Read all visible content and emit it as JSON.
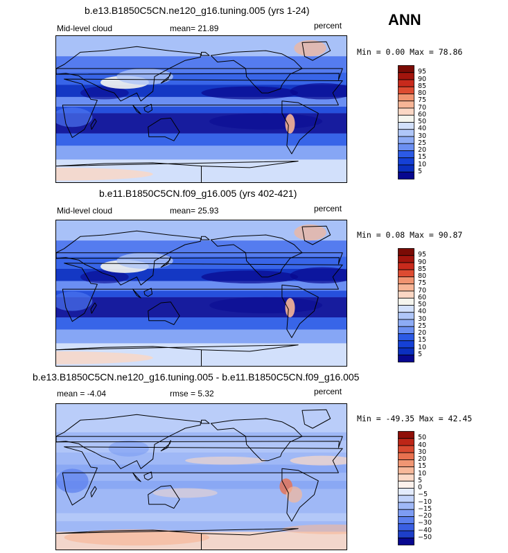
{
  "season": "ANN",
  "palettes": {
    "abs": [
      "#08088f",
      "#0b2fbf",
      "#1540d6",
      "#2c5ae5",
      "#4b73ee",
      "#6b8ff2",
      "#8dabf5",
      "#afc6f8",
      "#d2e0fb",
      "#f5f5ee",
      "#fbd7c4",
      "#f7b596",
      "#f09370",
      "#e8704e",
      "#dd4b31",
      "#c82a1c",
      "#a3150d",
      "#7a0b05"
    ],
    "diff": [
      "#08088f",
      "#1d3fc9",
      "#3a5fe3",
      "#5b7fee",
      "#7d9cf3",
      "#9fb8f6",
      "#c1d2fa",
      "#e3ebfd",
      "#fdf1ec",
      "#fbd9c7",
      "#f7b89a",
      "#f09673",
      "#e8714f",
      "#d94a30",
      "#bd2617",
      "#8f0f08"
    ]
  },
  "panels": [
    {
      "title": "b.e13.B1850C5CN.ne120_g16.tuning.005 (yrs 1-24)",
      "left_label": "Mid-level cloud",
      "mid_label": "mean=   21.89",
      "units": "percent",
      "minmax": "Min =    0.00 Max =   78.86",
      "colorbar": {
        "palette": "abs",
        "labels": [
          "95",
          "90",
          "85",
          "80",
          "75",
          "70",
          "60",
          "50",
          "40",
          "30",
          "25",
          "20",
          "15",
          "10",
          "5"
        ]
      }
    },
    {
      "title": "b.e11.B1850C5CN.f09_g16.005 (yrs 402-421)",
      "left_label": "Mid-level cloud",
      "mid_label": "mean=   25.93",
      "units": "percent",
      "minmax": "Min =    0.08 Max =   90.87",
      "colorbar": {
        "palette": "abs",
        "labels": [
          "95",
          "90",
          "85",
          "80",
          "75",
          "70",
          "60",
          "50",
          "40",
          "30",
          "25",
          "20",
          "15",
          "10",
          "5"
        ]
      }
    },
    {
      "title": "b.e13.B1850C5CN.ne120_g16.tuning.005 - b.e11.B1850C5CN.f09_g16.005",
      "left_label": "mean =   -4.04",
      "mid_label": "rmse =    5.32",
      "units": "percent",
      "minmax": "Min = -49.35 Max =  42.45",
      "colorbar": {
        "palette": "diff",
        "labels": [
          "50",
          "40",
          "30",
          "20",
          "15",
          "10",
          "5",
          "0",
          "−5",
          "−10",
          "−15",
          "−20",
          "−30",
          "−40",
          "−50"
        ]
      }
    }
  ]
}
